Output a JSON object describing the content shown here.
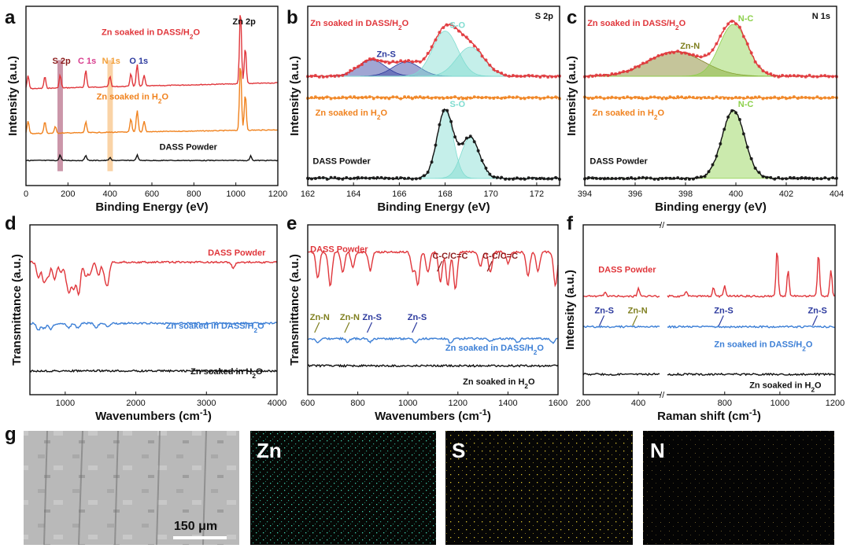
{
  "colors": {
    "red": "#e0363b",
    "orange": "#f0821e",
    "black": "#111111",
    "blue": "#3c7fd6",
    "cyan": "#7fdcd0",
    "green": "#8cd04a",
    "navy": "#2c3a9e",
    "darkred": "#8b1a1a",
    "olive": "#7f7f1f",
    "pink": "#d83d8e",
    "lightorange": "#f2a03a"
  },
  "panel_labels": {
    "a": "a",
    "b": "b",
    "c": "c",
    "d": "d",
    "e": "e",
    "f": "f",
    "g": "g"
  },
  "chart_data": [
    {
      "id": "a",
      "type": "line",
      "title": "",
      "xlabel": "Binding Energy (eV)",
      "ylabel": "Intensity (a.u.)",
      "xlim": [
        0,
        1200
      ],
      "xticks": [
        0,
        200,
        400,
        600,
        800,
        1000,
        1200
      ],
      "series": [
        {
          "name": "Zn soaked in DASS/H₂O",
          "color": "#e0363b",
          "peaks": [
            [
              10,
              0.6
            ],
            [
              90,
              0.55
            ],
            [
              163,
              0.6
            ],
            [
              285,
              0.8
            ],
            [
              400,
              0.5
            ],
            [
              500,
              0.6
            ],
            [
              530,
              1.0
            ],
            [
              563,
              0.5
            ],
            [
              1022,
              3.5
            ],
            [
              1045,
              1.7
            ]
          ]
        },
        {
          "name": "Zn soaked in H₂O",
          "color": "#f0821e",
          "peaks": [
            [
              10,
              0.6
            ],
            [
              90,
              0.55
            ],
            [
              140,
              0.3
            ],
            [
              285,
              0.5
            ],
            [
              500,
              0.6
            ],
            [
              530,
              1.0
            ],
            [
              563,
              0.5
            ],
            [
              1022,
              3.2
            ],
            [
              1045,
              1.7
            ]
          ]
        },
        {
          "name": "DASS Powder",
          "color": "#111111",
          "peaks": [
            [
              163,
              0.6
            ],
            [
              285,
              0.6
            ],
            [
              400,
              0.3
            ],
            [
              530,
              0.6
            ],
            [
              1071,
              0.5
            ]
          ]
        }
      ],
      "annotations": [
        {
          "text": "S 2p",
          "x": 163,
          "color": "#8b1a1a"
        },
        {
          "text": "C 1s",
          "x": 285,
          "color": "#d83d8e"
        },
        {
          "text": "N 1s",
          "x": 400,
          "color": "#f2a03a"
        },
        {
          "text": "O 1s",
          "x": 530,
          "color": "#2c3a9e"
        },
        {
          "text": "Zn 2p",
          "x": 1022,
          "color": "#111111"
        }
      ],
      "highlight_bands": [
        [
          150,
          176
        ],
        [
          388,
          414
        ]
      ]
    },
    {
      "id": "b",
      "type": "line",
      "title": "S 2p",
      "xlabel": "Binding Energy (eV)",
      "ylabel": "Intensity (a.u.)",
      "xlim": [
        162,
        173
      ],
      "xticks": [
        162,
        164,
        166,
        168,
        170,
        172
      ],
      "series": [
        {
          "name": "Zn soaked in DASS/H₂O",
          "color": "#e0363b",
          "components": [
            {
              "name": "Zn-S",
              "center": 164.8,
              "height": 0.25,
              "sigma": 0.6,
              "color": "#2c3a9e"
            },
            {
              "name": "Zn-S",
              "center": 166.3,
              "height": 0.22,
              "sigma": 0.6,
              "color": "#2c3a9e"
            },
            {
              "name": "S-O",
              "center": 168.0,
              "height": 0.7,
              "sigma": 0.55,
              "color": "#7fdcd0"
            },
            {
              "name": "S-O",
              "center": 169.1,
              "height": 0.45,
              "sigma": 0.6,
              "color": "#7fdcd0"
            }
          ]
        },
        {
          "name": "Zn soaked in H₂O",
          "color": "#f0821e",
          "components": []
        },
        {
          "name": "DASS Powder",
          "color": "#111111",
          "components": [
            {
              "name": "S-O",
              "center": 168.0,
              "height": 1.0,
              "sigma": 0.35,
              "color": "#7fdcd0"
            },
            {
              "name": "S-O",
              "center": 169.1,
              "height": 0.6,
              "sigma": 0.4,
              "color": "#7fdcd0"
            }
          ]
        }
      ]
    },
    {
      "id": "c",
      "type": "line",
      "title": "N 1s",
      "xlabel": "Binding energy (eV)",
      "ylabel": "Intensity (a.u.)",
      "xlim": [
        394,
        404
      ],
      "xticks": [
        394,
        396,
        398,
        400,
        402,
        404
      ],
      "series": [
        {
          "name": "Zn soaked in DASS/H₂O",
          "color": "#e0363b",
          "components": [
            {
              "name": "Zn-N",
              "center": 397.6,
              "height": 0.4,
              "sigma": 1.1,
              "color": "#7f7f1f"
            },
            {
              "name": "N-C",
              "center": 399.9,
              "height": 0.85,
              "sigma": 0.55,
              "color": "#8cd04a"
            }
          ]
        },
        {
          "name": "Zn soaked in H₂O",
          "color": "#f0821e",
          "components": []
        },
        {
          "name": "DASS Powder",
          "color": "#111111",
          "components": [
            {
              "name": "N-C",
              "center": 399.9,
              "height": 1.0,
              "sigma": 0.45,
              "color": "#8cd04a"
            }
          ]
        }
      ]
    },
    {
      "id": "d",
      "type": "line",
      "title": "",
      "xlabel": "Wavenumbers (cm⁻¹)",
      "ylabel": "Transmittance (a.u.)",
      "xlim": [
        500,
        4000
      ],
      "xticks": [
        1000,
        2000,
        3000,
        4000
      ],
      "series": [
        {
          "name": "DASS Powder",
          "color": "#e0363b",
          "dips": [
            [
              620,
              0.6
            ],
            [
              700,
              0.75
            ],
            [
              760,
              0.5
            ],
            [
              850,
              0.65
            ],
            [
              940,
              0.4
            ],
            [
              1020,
              0.55
            ],
            [
              1060,
              0.9
            ],
            [
              1120,
              0.95
            ],
            [
              1190,
              1.2
            ],
            [
              1290,
              0.5
            ],
            [
              1350,
              0.45
            ],
            [
              1470,
              0.5
            ],
            [
              1560,
              0.4
            ],
            [
              1600,
              0.75
            ],
            [
              3380,
              0.2
            ]
          ]
        },
        {
          "name": "Zn soaked in DASS/H₂O",
          "color": "#3c7fd6",
          "dips": [
            [
              620,
              0.4
            ],
            [
              700,
              0.3
            ],
            [
              800,
              0.35
            ],
            [
              1050,
              0.3
            ],
            [
              1180,
              0.3
            ],
            [
              1440,
              0.25
            ],
            [
              1600,
              0.2
            ]
          ]
        },
        {
          "name": "Zn soaked in H₂O",
          "color": "#111111",
          "dips": []
        }
      ]
    },
    {
      "id": "e",
      "type": "line",
      "title": "",
      "xlabel": "Wavenumbers (cm⁻¹)",
      "ylabel": "Transmittance (a.u.)",
      "xlim": [
        600,
        1600
      ],
      "xticks": [
        600,
        800,
        1000,
        1200,
        1400,
        1600
      ],
      "series": [
        {
          "name": "DASS Powder",
          "color": "#e0363b",
          "dips": [
            [
              640,
              0.7
            ],
            [
              690,
              0.9
            ],
            [
              740,
              0.55
            ],
            [
              780,
              0.4
            ],
            [
              850,
              0.5
            ],
            [
              1020,
              0.5
            ],
            [
              1040,
              0.9
            ],
            [
              1080,
              0.55
            ],
            [
              1130,
              0.8
            ],
            [
              1160,
              0.9
            ],
            [
              1190,
              1.0
            ],
            [
              1290,
              0.4
            ],
            [
              1330,
              0.55
            ],
            [
              1400,
              0.3
            ],
            [
              1480,
              0.65
            ],
            [
              1520,
              0.5
            ],
            [
              1590,
              0.9
            ]
          ]
        },
        {
          "name": "Zn soaked in DASS/H₂O",
          "color": "#3c7fd6",
          "dips": [
            [
              640,
              0.35
            ],
            [
              760,
              0.25
            ],
            [
              850,
              0.25
            ],
            [
              1030,
              0.3
            ],
            [
              1170,
              0.3
            ],
            [
              1330,
              0.2
            ],
            [
              1440,
              0.3
            ],
            [
              1580,
              0.3
            ]
          ]
        },
        {
          "name": "Zn soaked in H₂O",
          "color": "#111111",
          "dips": []
        }
      ],
      "annotations": [
        {
          "text": "Zn-N",
          "x": 640,
          "color": "#7f7f1f"
        },
        {
          "text": "Zn-N",
          "x": 760,
          "color": "#7f7f1f"
        },
        {
          "text": "Zn-S",
          "x": 850,
          "color": "#2c3a9e"
        },
        {
          "text": "Zn-S",
          "x": 1030,
          "color": "#2c3a9e"
        },
        {
          "text": "C-C/C=C",
          "x": 1130,
          "color": "#8b1a1a"
        },
        {
          "text": "C-C/C=C",
          "x": 1330,
          "color": "#8b1a1a"
        }
      ]
    },
    {
      "id": "f",
      "type": "line",
      "title": "",
      "xlabel": "Raman shift (cm⁻¹)",
      "ylabel": "Intensity (a.u.)",
      "xlim": [
        200,
        1200
      ],
      "xticks": [
        200,
        400,
        800,
        1000,
        1200
      ],
      "axis_break": [
        480,
        590
      ],
      "series": [
        {
          "name": "DASS Powder",
          "color": "#e0363b",
          "peaks": [
            [
              280,
              0.15
            ],
            [
              400,
              0.3
            ],
            [
              660,
              0.2
            ],
            [
              760,
              0.3
            ],
            [
              800,
              0.35
            ],
            [
              990,
              1.6
            ],
            [
              1030,
              0.9
            ],
            [
              1140,
              1.5
            ],
            [
              1185,
              0.9
            ]
          ]
        },
        {
          "name": "Zn soaked in DASS/H₂O",
          "color": "#3c7fd6",
          "peaks": []
        },
        {
          "name": "Zn soaked in H₂O",
          "color": "#111111",
          "peaks": []
        }
      ],
      "annotations": [
        {
          "text": "Zn-S",
          "x": 270,
          "color": "#2c3a9e"
        },
        {
          "text": "Zn-N",
          "x": 390,
          "color": "#7f7f1f"
        },
        {
          "text": "Zn-S",
          "x": 790,
          "color": "#2c3a9e"
        },
        {
          "text": "Zn-S",
          "x": 1130,
          "color": "#2c3a9e"
        }
      ]
    }
  ],
  "panel_g": {
    "maps": [
      "Zn",
      "S",
      "N"
    ],
    "scale_bar": "150 μm"
  }
}
